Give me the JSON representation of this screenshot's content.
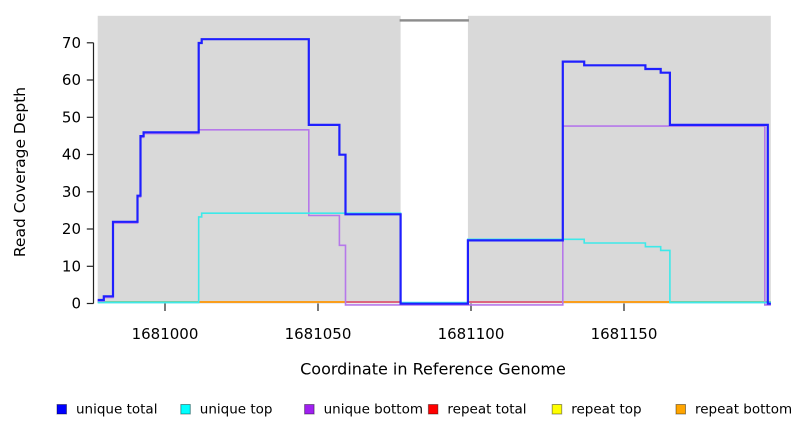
{
  "figure": {
    "background_color": "#ffffff",
    "panel_color": "#d9d9d9",
    "gap_cap_color": "#8c8c8c",
    "axis_color": "#222222",
    "text_color": "#000000"
  },
  "chart_data": {
    "type": "line",
    "step": true,
    "title": "",
    "xlabel": "Coordinate in Reference Genome",
    "ylabel": "Read Coverage Depth",
    "x_ticks": [
      1681000,
      1681050,
      1681100,
      1681150
    ],
    "y_ticks": [
      0,
      10,
      20,
      30,
      40,
      50,
      60,
      70
    ],
    "xlim": [
      1680978,
      1681198
    ],
    "ylim": [
      0,
      77
    ],
    "grid": false,
    "legend_position": "bottom",
    "shaded_unique_regions": [
      {
        "from": 1680978,
        "to": 1681077
      },
      {
        "from": 1681099,
        "to": 1681198
      }
    ],
    "repeat_gap_region": {
      "from": 1681077,
      "to": 1681099
    },
    "series": [
      {
        "name": "unique total",
        "color": "#1f1fff",
        "points": [
          [
            1680978,
            1
          ],
          [
            1680980,
            2
          ],
          [
            1680983,
            22
          ],
          [
            1680991,
            29
          ],
          [
            1680992,
            45
          ],
          [
            1680993,
            46
          ],
          [
            1681011,
            70
          ],
          [
            1681012,
            71
          ],
          [
            1681047,
            48
          ],
          [
            1681057,
            40
          ],
          [
            1681059,
            24
          ],
          [
            1681077,
            0
          ],
          [
            1681099,
            17
          ],
          [
            1681130,
            65
          ],
          [
            1681137,
            64
          ],
          [
            1681157,
            63
          ],
          [
            1681162,
            62
          ],
          [
            1681165,
            48
          ],
          [
            1681197,
            0
          ]
        ]
      },
      {
        "name": "unique top",
        "color": "#3de9e9",
        "points": [
          [
            1680978,
            0
          ],
          [
            1681011,
            23
          ],
          [
            1681012,
            24
          ],
          [
            1681077,
            0
          ],
          [
            1681099,
            17
          ],
          [
            1681137,
            16
          ],
          [
            1681157,
            15
          ],
          [
            1681162,
            14
          ],
          [
            1681165,
            0
          ]
        ]
      },
      {
        "name": "unique bottom",
        "color": "#b678ea",
        "points": [
          [
            1680978,
            1
          ],
          [
            1680980,
            2
          ],
          [
            1680983,
            22
          ],
          [
            1680991,
            29
          ],
          [
            1680992,
            45
          ],
          [
            1680993,
            46
          ],
          [
            1681011,
            47
          ],
          [
            1681047,
            24
          ],
          [
            1681057,
            16
          ],
          [
            1681059,
            0
          ],
          [
            1681130,
            48
          ],
          [
            1681196,
            0
          ]
        ]
      },
      {
        "name": "repeat total",
        "color": "#dd5570",
        "points": [
          [
            1680978,
            0
          ],
          [
            1681198,
            0
          ]
        ]
      },
      {
        "name": "repeat top",
        "color": "#ffff00",
        "points": [
          [
            1680978,
            0
          ],
          [
            1681198,
            0
          ]
        ]
      },
      {
        "name": "repeat bottom",
        "color": "#ff9500",
        "points": [
          [
            1680978,
            0
          ],
          [
            1681198,
            0
          ]
        ]
      }
    ],
    "baseline_segments": [
      {
        "from": 1680978,
        "to": 1681011,
        "color": "#6fc687"
      },
      {
        "from": 1681011,
        "to": 1681059,
        "color": "#ff9500"
      },
      {
        "from": 1681059,
        "to": 1681077,
        "color": "#dd5570"
      },
      {
        "from": 1681099,
        "to": 1681130,
        "color": "#dd5570"
      },
      {
        "from": 1681130,
        "to": 1681165,
        "color": "#ff9500"
      },
      {
        "from": 1681165,
        "to": 1681198,
        "color": "#6fc687"
      }
    ],
    "legend": [
      {
        "label": "unique total",
        "color": "#0000ff"
      },
      {
        "label": "unique top",
        "color": "#00ffff"
      },
      {
        "label": "unique bottom",
        "color": "#a020f0"
      },
      {
        "label": "repeat total",
        "color": "#ff0000"
      },
      {
        "label": "repeat top",
        "color": "#ffff00"
      },
      {
        "label": "repeat bottom",
        "color": "#ffa500"
      }
    ]
  }
}
